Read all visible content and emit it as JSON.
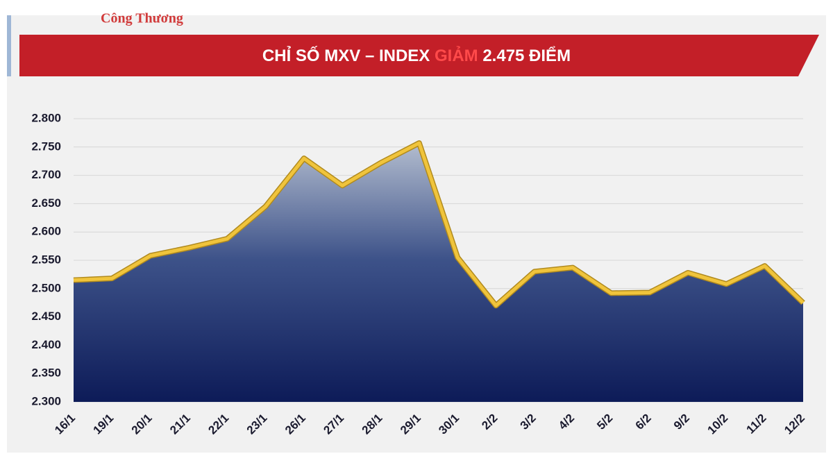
{
  "header": {
    "logo_text": "Công Thương"
  },
  "chart_data": {
    "type": "area",
    "title": "CHỈ SỐ MXV – INDEX",
    "title_highlight": "GIẢM",
    "title_value": "2.475 ĐIỂM",
    "categories": [
      "16/1",
      "19/1",
      "20/1",
      "21/1",
      "22/1",
      "23/1",
      "26/1",
      "27/1",
      "28/1",
      "29/1",
      "30/1",
      "2/2",
      "3/2",
      "4/2",
      "5/2",
      "6/2",
      "9/2",
      "10/2",
      "11/2",
      "12/2"
    ],
    "series": [
      {
        "color": "#f0c43c",
        "values": [
          2515,
          2518,
          2558,
          2572,
          2588,
          2645,
          2730,
          2682,
          2722,
          2757,
          2555,
          2470,
          2530,
          2537,
          2492,
          2493,
          2528,
          2508,
          2540,
          2475
        ]
      }
    ],
    "ylim": [
      2300,
      2800
    ],
    "yticks": [
      {
        "value": 2300,
        "label": "2.300"
      },
      {
        "value": 2350,
        "label": "2.350"
      },
      {
        "value": 2400,
        "label": "2.400"
      },
      {
        "value": 2450,
        "label": "2.450"
      },
      {
        "value": 2500,
        "label": "2.500"
      },
      {
        "value": 2550,
        "label": "2.550"
      },
      {
        "value": 2600,
        "label": "2.600"
      },
      {
        "value": 2650,
        "label": "2.650"
      },
      {
        "value": 2700,
        "label": "2.700"
      },
      {
        "value": 2750,
        "label": "2.750"
      },
      {
        "value": 2800,
        "label": "2.800"
      }
    ],
    "grid": true
  }
}
